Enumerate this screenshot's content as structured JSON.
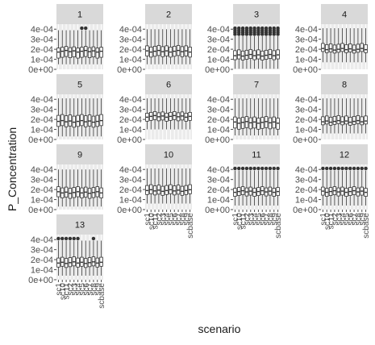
{
  "chart_data": {
    "type": "boxplot-facets",
    "xlabel": "scenario",
    "ylabel": "P_Concentration",
    "ylim": [
      0,
      0.00045
    ],
    "yticks": [
      0,
      0.0001,
      0.0002,
      0.0003,
      0.0004
    ],
    "ytick_labels": [
      "0e+00",
      "1e-04",
      "2e-04",
      "3e-04",
      "4e-04"
    ],
    "scenarios": [
      "sc1",
      "sc2",
      "sc3",
      "sc4",
      "sc5",
      "sc6",
      "sc7",
      "sc8",
      "sc9",
      "sc10",
      "sc11",
      "scbase"
    ],
    "scenario_tick_labels": [
      "sc1",
      "sc10",
      "sc11",
      "sc2",
      "sc3",
      "sc4",
      "sc5",
      "sc6",
      "sc7",
      "sc8",
      "sc9",
      "scbase"
    ],
    "layout": {
      "ncol": 4,
      "grid": "vertical-white-lines"
    },
    "facets": [
      {
        "label": "1",
        "box": {
          "low": 5e-05,
          "q1": 0.00012,
          "med": 0.00018,
          "q3": 0.00022,
          "high": 0.00039
        },
        "outlier_boxes": [
          6,
          7
        ],
        "outlier_values": [
          0.00041
        ]
      },
      {
        "label": "2",
        "box": {
          "low": 5e-05,
          "q1": 0.00013,
          "med": 0.00018,
          "q3": 0.00023,
          "high": 0.0004
        },
        "outlier_boxes": [],
        "outlier_values": []
      },
      {
        "label": "3",
        "box": {
          "low": 5e-06,
          "q1": 0.0001,
          "med": 0.00014,
          "q3": 0.00019,
          "high": 0.00033
        },
        "outlier_boxes": "all",
        "outlier_values": [
          0.00035,
          0.00037,
          0.00039,
          0.00041
        ]
      },
      {
        "label": "4",
        "box": {
          "low": 7e-05,
          "q1": 0.00017,
          "med": 0.0002,
          "q3": 0.00025,
          "high": 0.00041
        },
        "outlier_boxes": [],
        "outlier_values": []
      },
      {
        "label": "5",
        "box": {
          "low": 3e-05,
          "q1": 0.00013,
          "med": 0.00018,
          "q3": 0.00024,
          "high": 0.00041
        },
        "outlier_boxes": [],
        "outlier_values": []
      },
      {
        "label": "6",
        "box": {
          "low": 0.0001,
          "q1": 0.00019,
          "med": 0.00023,
          "q3": 0.00027,
          "high": 0.00041
        },
        "outlier_boxes": [],
        "outlier_values": []
      },
      {
        "label": "7",
        "box": {
          "low": 4e-05,
          "q1": 0.00011,
          "med": 0.00017,
          "q3": 0.00022,
          "high": 0.00041
        },
        "outlier_boxes": [],
        "outlier_values": []
      },
      {
        "label": "8",
        "box": {
          "low": 6e-05,
          "q1": 0.00015,
          "med": 0.00018,
          "q3": 0.00023,
          "high": 0.00041
        },
        "outlier_boxes": [],
        "outlier_values": []
      },
      {
        "label": "9",
        "box": {
          "low": 3e-05,
          "q1": 0.00012,
          "med": 0.00017,
          "q3": 0.00022,
          "high": 0.0004
        },
        "outlier_boxes": [],
        "outlier_values": []
      },
      {
        "label": "10",
        "box": {
          "low": 6e-05,
          "q1": 0.00015,
          "med": 0.00019,
          "q3": 0.00024,
          "high": 0.00041
        },
        "outlier_boxes": [],
        "outlier_values": []
      },
      {
        "label": "11",
        "box": {
          "low": 4e-05,
          "q1": 0.00014,
          "med": 0.00018,
          "q3": 0.00022,
          "high": 0.00039
        },
        "outlier_boxes": "all",
        "outlier_values": [
          0.00041
        ]
      },
      {
        "label": "12",
        "box": {
          "low": 4e-05,
          "q1": 0.00014,
          "med": 0.00018,
          "q3": 0.00022,
          "high": 0.00039
        },
        "outlier_boxes": "all",
        "outlier_values": [
          0.00041
        ]
      },
      {
        "label": "13",
        "box": {
          "low": 4e-05,
          "q1": 0.00013,
          "med": 0.00017,
          "q3": 0.00022,
          "high": 0.00039
        },
        "outlier_boxes": [
          0,
          1,
          2,
          3,
          4,
          5,
          9
        ],
        "outlier_values": [
          0.00041
        ]
      }
    ],
    "colors": {
      "strip": "#d9d9d9",
      "panel": "#ebebeb",
      "gridline": "#ffffff",
      "box_stroke": "#333333",
      "box_fill": "#ffffff",
      "outlier": "#333333",
      "axis_text": "#4d4d4d",
      "title_text": "#1a1a1a"
    }
  }
}
